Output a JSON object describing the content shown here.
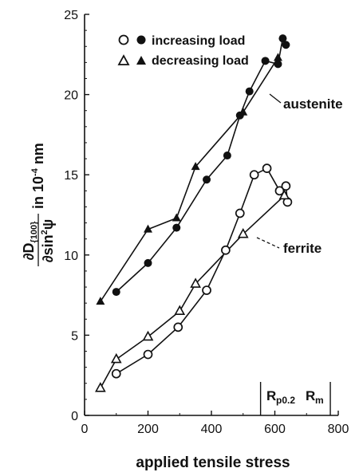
{
  "chart_data": {
    "type": "line",
    "xlabel": "applied tensile stress",
    "ylabel": {
      "numerator": "∂D",
      "numerator_sub": "{100}",
      "denominator": "∂sin",
      "denominator_sup": "2",
      "denominator_end": "ψ",
      "unit_text": "in 10",
      "unit_sup": "-4",
      "unit_end": " nm"
    },
    "xlim": [
      0,
      800
    ],
    "ylim": [
      0,
      25
    ],
    "xticks": [
      0,
      200,
      400,
      600,
      800
    ],
    "yticks": [
      0,
      5,
      10,
      15,
      20,
      25
    ],
    "grid": false,
    "legend_position": "top-left",
    "legend": [
      {
        "label": "increasing load",
        "symbols": [
          "open-circle",
          "filled-circle"
        ]
      },
      {
        "label": "decreasing load",
        "symbols": [
          "open-triangle",
          "filled-triangle"
        ]
      }
    ],
    "annotations": [
      {
        "text": "austenite",
        "x": 580,
        "y": 19.2
      },
      {
        "text": "ferrite",
        "x": 590,
        "y": 10.0
      }
    ],
    "markers": [
      {
        "label": "R",
        "sub": "p0.2",
        "x": 555
      },
      {
        "label": "R",
        "sub": "m",
        "x": 775
      }
    ],
    "series": [
      {
        "name": "austenite increasing load",
        "marker": "filled-circle",
        "x": [
          100,
          200,
          290,
          385,
          450,
          490,
          520,
          570,
          610,
          625,
          635
        ],
        "y": [
          7.7,
          9.5,
          11.7,
          14.7,
          16.2,
          18.7,
          20.2,
          22.1,
          21.9,
          23.5,
          23.1
        ]
      },
      {
        "name": "austenite decreasing load",
        "marker": "filled-triangle",
        "x": [
          50,
          200,
          290,
          350,
          500,
          610
        ],
        "y": [
          7.1,
          11.6,
          12.3,
          15.5,
          18.9,
          22.3
        ]
      },
      {
        "name": "ferrite increasing load",
        "marker": "open-circle",
        "x": [
          100,
          200,
          295,
          385,
          445,
          490,
          535,
          575,
          615,
          635,
          640
        ],
        "y": [
          2.6,
          3.8,
          5.5,
          7.8,
          10.3,
          12.6,
          15.0,
          15.4,
          14.0,
          14.3,
          13.3
        ]
      },
      {
        "name": "ferrite decreasing load",
        "marker": "open-triangle",
        "x": [
          50,
          100,
          200,
          300,
          350,
          500,
          630
        ],
        "y": [
          1.7,
          3.5,
          4.9,
          6.5,
          8.2,
          11.3,
          13.7
        ]
      }
    ]
  }
}
